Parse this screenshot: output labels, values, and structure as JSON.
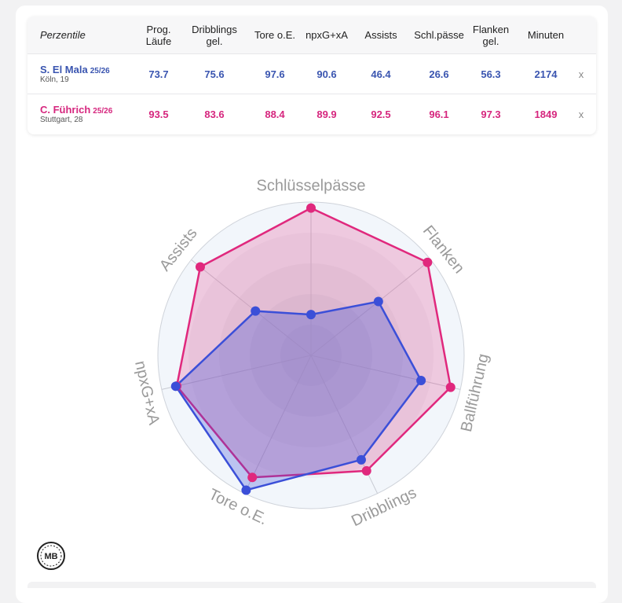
{
  "table": {
    "header_first": "Perzentile",
    "columns": [
      {
        "label": "Prog.\nLäufe"
      },
      {
        "label": "Dribblings\ngel."
      },
      {
        "label": "Tore o.E."
      },
      {
        "label": "npxG+xA"
      },
      {
        "label": "Assists"
      },
      {
        "label": "Schl.pässe"
      },
      {
        "label": "Flanken\ngel."
      },
      {
        "label": "Minuten"
      }
    ],
    "players": [
      {
        "name": "S. El Mala",
        "season": "25/26",
        "sub": "Köln, 19",
        "values": [
          "73.7",
          "75.6",
          "97.6",
          "90.6",
          "46.4",
          "26.6",
          "56.3",
          "2174"
        ],
        "remove": "x"
      },
      {
        "name": "C. Führich",
        "season": "25/26",
        "sub": "Stuttgart, 28",
        "values": [
          "93.5",
          "83.6",
          "88.4",
          "89.9",
          "92.5",
          "96.1",
          "97.3",
          "1849"
        ],
        "remove": "x"
      }
    ]
  },
  "colors": {
    "player1": "#3b4fd8",
    "player2": "#e0287d",
    "text_blue": "#3a55b0",
    "text_pink": "#d6267e"
  },
  "chart_data": {
    "type": "radar",
    "axes": [
      "Schlüsselpässe",
      "Flanken",
      "Ballführung",
      "Dribblings",
      "Tore o.E.",
      "npxG+xA",
      "Assists"
    ],
    "range": [
      0,
      100
    ],
    "series": [
      {
        "name": "S. El Mala",
        "values": [
          26.6,
          56.3,
          73.7,
          75.6,
          97.6,
          90.6,
          46.4
        ]
      },
      {
        "name": "C. Führich",
        "values": [
          96.1,
          97.3,
          93.5,
          83.6,
          88.4,
          89.9,
          92.5
        ]
      }
    ]
  },
  "logo": {
    "text": "MB",
    "icon": "mb-logo-icon"
  }
}
